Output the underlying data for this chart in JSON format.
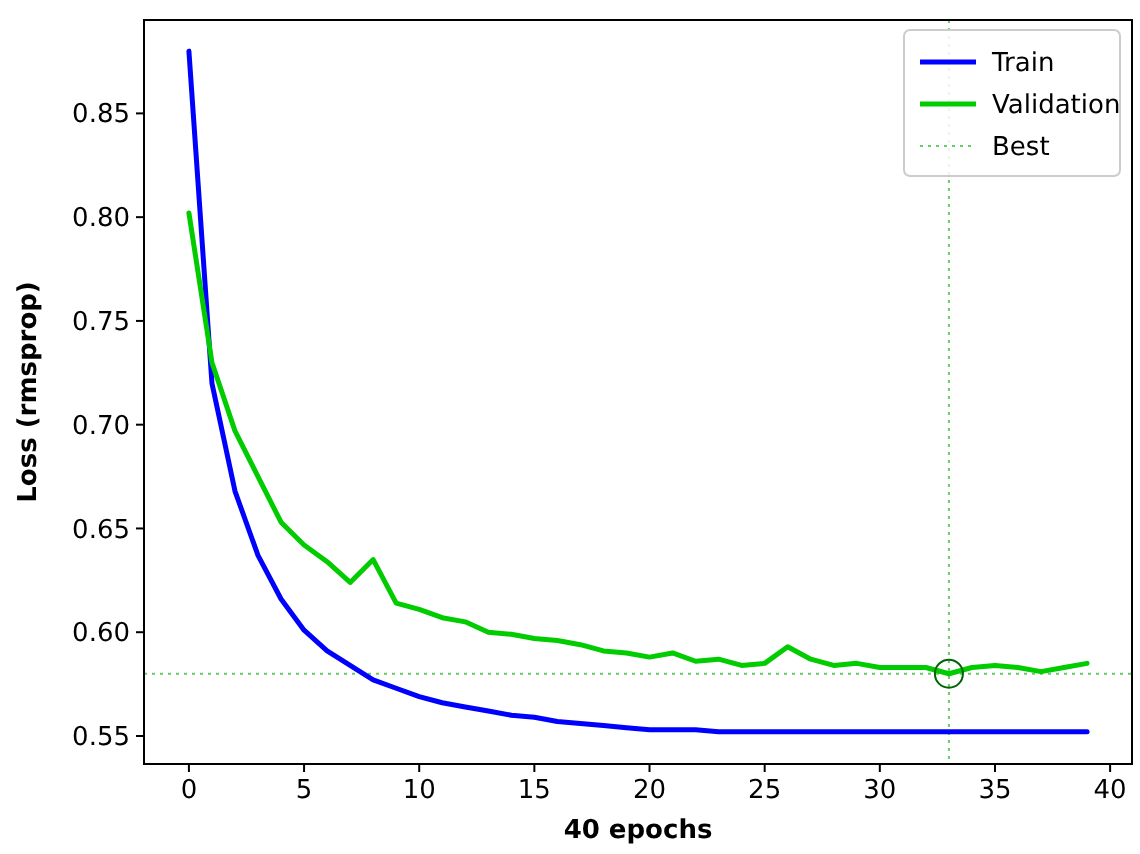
{
  "chart_data": {
    "type": "line",
    "xlabel": "40 epochs",
    "ylabel": "Loss (rmsprop)",
    "x": [
      0,
      1,
      2,
      3,
      4,
      5,
      6,
      7,
      8,
      9,
      10,
      11,
      12,
      13,
      14,
      15,
      16,
      17,
      18,
      19,
      20,
      21,
      22,
      23,
      24,
      25,
      26,
      27,
      28,
      29,
      30,
      31,
      32,
      33,
      34,
      35,
      36,
      37,
      38,
      39
    ],
    "series": [
      {
        "name": "Train",
        "color": "#0000ff",
        "values": [
          0.88,
          0.72,
          0.668,
          0.637,
          0.616,
          0.601,
          0.591,
          0.584,
          0.577,
          0.573,
          0.569,
          0.566,
          0.564,
          0.562,
          0.56,
          0.559,
          0.557,
          0.556,
          0.555,
          0.554,
          0.553,
          0.553,
          0.553,
          0.552,
          0.552,
          0.552,
          0.552,
          0.552,
          0.552,
          0.552,
          0.552,
          0.552,
          0.552,
          0.552,
          0.552,
          0.552,
          0.552,
          0.552,
          0.552,
          0.552
        ]
      },
      {
        "name": "Validation",
        "color": "#00cc00",
        "values": [
          0.802,
          0.73,
          0.697,
          0.675,
          0.653,
          0.642,
          0.634,
          0.624,
          0.635,
          0.614,
          0.611,
          0.607,
          0.605,
          0.6,
          0.599,
          0.597,
          0.596,
          0.594,
          0.591,
          0.59,
          0.588,
          0.59,
          0.586,
          0.587,
          0.584,
          0.585,
          0.593,
          0.587,
          0.584,
          0.585,
          0.583,
          0.583,
          0.583,
          0.58,
          0.583,
          0.584,
          0.583,
          0.581,
          0.583,
          0.585
        ]
      },
      {
        "type": "scatter",
        "marker": "circle",
        "color": "#006400",
        "x": [
          33
        ],
        "values": [
          0.58
        ]
      }
    ],
    "xlim": [
      -1.95,
      40.95
    ],
    "ylim": [
      0.5365,
      0.895
    ],
    "xticks": [
      0,
      5,
      10,
      15,
      20,
      25,
      30,
      35,
      40
    ],
    "yticks": [
      {
        "value": 0.55,
        "label": "0.55"
      },
      {
        "value": 0.6,
        "label": "0.60"
      },
      {
        "value": 0.65,
        "label": "0.65"
      },
      {
        "value": 0.7,
        "label": "0.70"
      },
      {
        "value": 0.75,
        "label": "0.75"
      },
      {
        "value": 0.8,
        "label": "0.80"
      },
      {
        "value": 0.85,
        "label": "0.85"
      }
    ],
    "ref_lines": [
      {
        "axis": "x",
        "value": 33,
        "label": "Best",
        "color": "#66cc66",
        "line_style": "dotted"
      },
      {
        "axis": "y",
        "value": 0.58,
        "color": "#66cc66",
        "line_style": "dotted"
      }
    ],
    "legend": "top right",
    "grid": false,
    "marker": "none",
    "line_style": "solid"
  }
}
